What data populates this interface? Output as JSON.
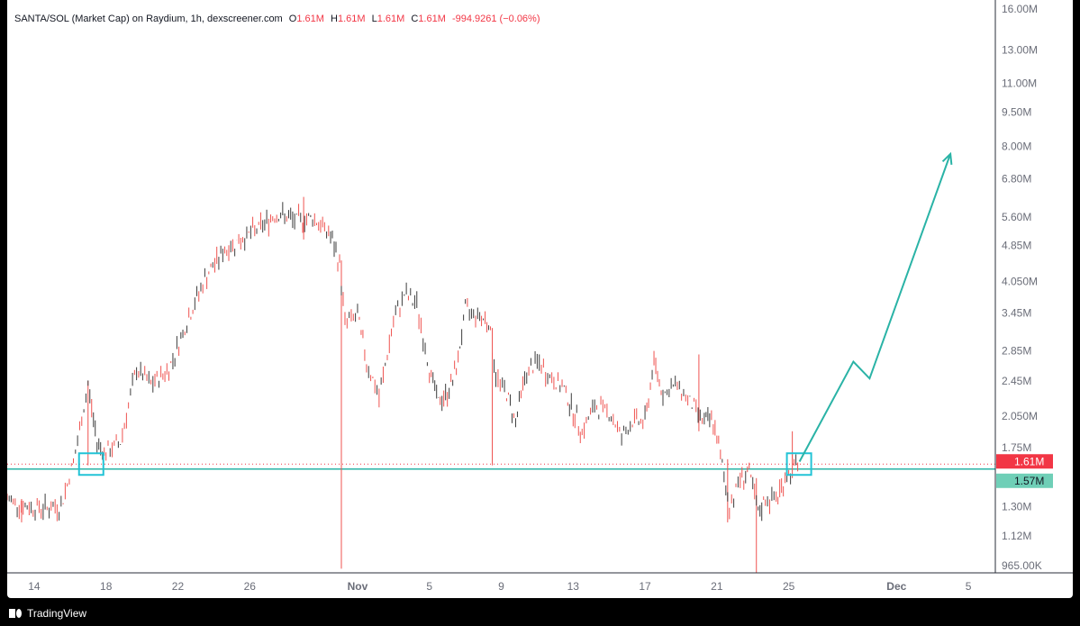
{
  "legend": {
    "symbol": "SANTA/SOL (Market Cap) on Raydium, 1h, dexscreener.com",
    "o_label": "O",
    "o_value": "1.61M",
    "h_label": "H",
    "h_value": "1.61M",
    "l_label": "L",
    "l_value": "1.61M",
    "c_label": "C",
    "c_value": "1.61M",
    "change": "-994.9261 (−0.06%)"
  },
  "colors": {
    "up": "#26a69a",
    "down": "#ef5350",
    "annotation": "#2ab3a6",
    "box": "#22c3d6",
    "last_price_bg": "#f23645",
    "support_bg": "#6fcfb7"
  },
  "footer": {
    "brand": "TradingView",
    "logo_icon": "tradingview-logo-icon"
  },
  "chart_data": {
    "type": "candlestick",
    "title": "SANTA/SOL (Market Cap) on Raydium, 1h, dexscreener.com",
    "y_scale": "log",
    "ylim": [
      930000,
      16000000
    ],
    "y_ticks": [
      "16.00M",
      "13.00M",
      "11.00M",
      "9.50M",
      "8.00M",
      "6.80M",
      "5.60M",
      "4.85M",
      "4.050M",
      "3.45M",
      "2.85M",
      "2.45M",
      "2.050M",
      "1.75M",
      "1.30M",
      "1.12M",
      "965.00K"
    ],
    "y_tick_values": [
      16000000,
      13000000,
      11000000,
      9500000,
      8000000,
      6800000,
      5600000,
      4850000,
      4050000,
      3450000,
      2850000,
      2450000,
      2050000,
      1750000,
      1300000,
      1120000,
      965000
    ],
    "x_ticks": [
      "14",
      "18",
      "22",
      "26",
      "Nov",
      "5",
      "9",
      "13",
      "17",
      "21",
      "25",
      "Dec",
      "5"
    ],
    "x_tick_days": [
      14,
      18,
      22,
      26,
      32,
      36,
      40,
      44,
      48,
      52,
      56,
      62,
      66
    ],
    "x_range_days": [
      12.5,
      67.5
    ],
    "last_price_label": "1.61M",
    "last_price": 1610000,
    "support_label": "1.57M",
    "support": 1570000,
    "path_points": [
      {
        "day": 12.5,
        "value": 1350000
      },
      {
        "day": 13.5,
        "value": 1300000
      },
      {
        "day": 14.5,
        "value": 1290000
      },
      {
        "day": 15.5,
        "value": 1300000
      },
      {
        "day": 16.3,
        "value": 1700000
      },
      {
        "day": 17.0,
        "value": 2400000
      },
      {
        "day": 17.5,
        "value": 1800000
      },
      {
        "day": 18.0,
        "value": 1700000
      },
      {
        "day": 18.8,
        "value": 1800000
      },
      {
        "day": 19.7,
        "value": 2600000
      },
      {
        "day": 20.5,
        "value": 2400000
      },
      {
        "day": 21.5,
        "value": 2600000
      },
      {
        "day": 22.5,
        "value": 3300000
      },
      {
        "day": 23.5,
        "value": 4100000
      },
      {
        "day": 24.5,
        "value": 4700000
      },
      {
        "day": 25.5,
        "value": 5000000
      },
      {
        "day": 26.5,
        "value": 5300000
      },
      {
        "day": 27.5,
        "value": 5700000
      },
      {
        "day": 28.5,
        "value": 5500000
      },
      {
        "day": 29.5,
        "value": 5600000
      },
      {
        "day": 30.5,
        "value": 5100000
      },
      {
        "day": 31.0,
        "value": 4400000
      },
      {
        "day": 31.3,
        "value": 3300000
      },
      {
        "day": 32.0,
        "value": 3400000
      },
      {
        "day": 32.5,
        "value": 2700000
      },
      {
        "day": 33.2,
        "value": 2250000
      },
      {
        "day": 34.0,
        "value": 3300000
      },
      {
        "day": 34.6,
        "value": 3800000
      },
      {
        "day": 35.3,
        "value": 3600000
      },
      {
        "day": 36.0,
        "value": 2600000
      },
      {
        "day": 36.5,
        "value": 2200000
      },
      {
        "day": 37.0,
        "value": 2300000
      },
      {
        "day": 37.5,
        "value": 2600000
      },
      {
        "day": 38.0,
        "value": 3500000
      },
      {
        "day": 38.8,
        "value": 3400000
      },
      {
        "day": 39.3,
        "value": 3300000
      },
      {
        "day": 39.7,
        "value": 2500000
      },
      {
        "day": 40.3,
        "value": 2300000
      },
      {
        "day": 40.8,
        "value": 2000000
      },
      {
        "day": 41.3,
        "value": 2500000
      },
      {
        "day": 42.0,
        "value": 2700000
      },
      {
        "day": 42.7,
        "value": 2500000
      },
      {
        "day": 43.5,
        "value": 2350000
      },
      {
        "day": 44.0,
        "value": 2100000
      },
      {
        "day": 44.5,
        "value": 1900000
      },
      {
        "day": 45.2,
        "value": 2150000
      },
      {
        "day": 46.0,
        "value": 2100000
      },
      {
        "day": 46.7,
        "value": 1850000
      },
      {
        "day": 47.3,
        "value": 2000000
      },
      {
        "day": 48.0,
        "value": 2000000
      },
      {
        "day": 48.5,
        "value": 2700000
      },
      {
        "day": 49.0,
        "value": 2300000
      },
      {
        "day": 49.8,
        "value": 2400000
      },
      {
        "day": 50.5,
        "value": 2200000
      },
      {
        "day": 51.3,
        "value": 2000000
      },
      {
        "day": 51.8,
        "value": 2000000
      },
      {
        "day": 52.3,
        "value": 1600000
      },
      {
        "day": 52.7,
        "value": 1300000
      },
      {
        "day": 53.3,
        "value": 1500000
      },
      {
        "day": 53.8,
        "value": 1550000
      },
      {
        "day": 54.3,
        "value": 1250000
      },
      {
        "day": 54.7,
        "value": 1350000
      },
      {
        "day": 55.3,
        "value": 1350000
      },
      {
        "day": 55.8,
        "value": 1500000
      },
      {
        "day": 56.3,
        "value": 1600000
      },
      {
        "day": 56.6,
        "value": 1610000
      }
    ],
    "wicks": [
      {
        "day": 17.0,
        "high": 2450000,
        "low": 1600000
      },
      {
        "day": 13.3,
        "high": 1350000,
        "low": 1200000
      },
      {
        "day": 29.0,
        "high": 6200000,
        "low": 5000000
      },
      {
        "day": 31.1,
        "high": 4500000,
        "low": 950000
      },
      {
        "day": 39.5,
        "high": 3200000,
        "low": 1600000
      },
      {
        "day": 51.0,
        "high": 2800000,
        "low": 1900000
      },
      {
        "day": 54.2,
        "high": 1500000,
        "low": 930000
      },
      {
        "day": 52.6,
        "high": 1650000,
        "low": 1200000
      },
      {
        "day": 56.2,
        "high": 1900000,
        "low": 1500000
      }
    ],
    "markers": [
      {
        "day": 17.2,
        "value": 1610000,
        "label": "entry-box-left"
      },
      {
        "day": 56.6,
        "value": 1610000,
        "label": "entry-box-right"
      }
    ],
    "projection": [
      {
        "day": 56.6,
        "value": 1630000
      },
      {
        "day": 59.6,
        "value": 2700000
      },
      {
        "day": 60.5,
        "value": 2480000
      },
      {
        "day": 65.0,
        "value": 7700000
      }
    ]
  }
}
